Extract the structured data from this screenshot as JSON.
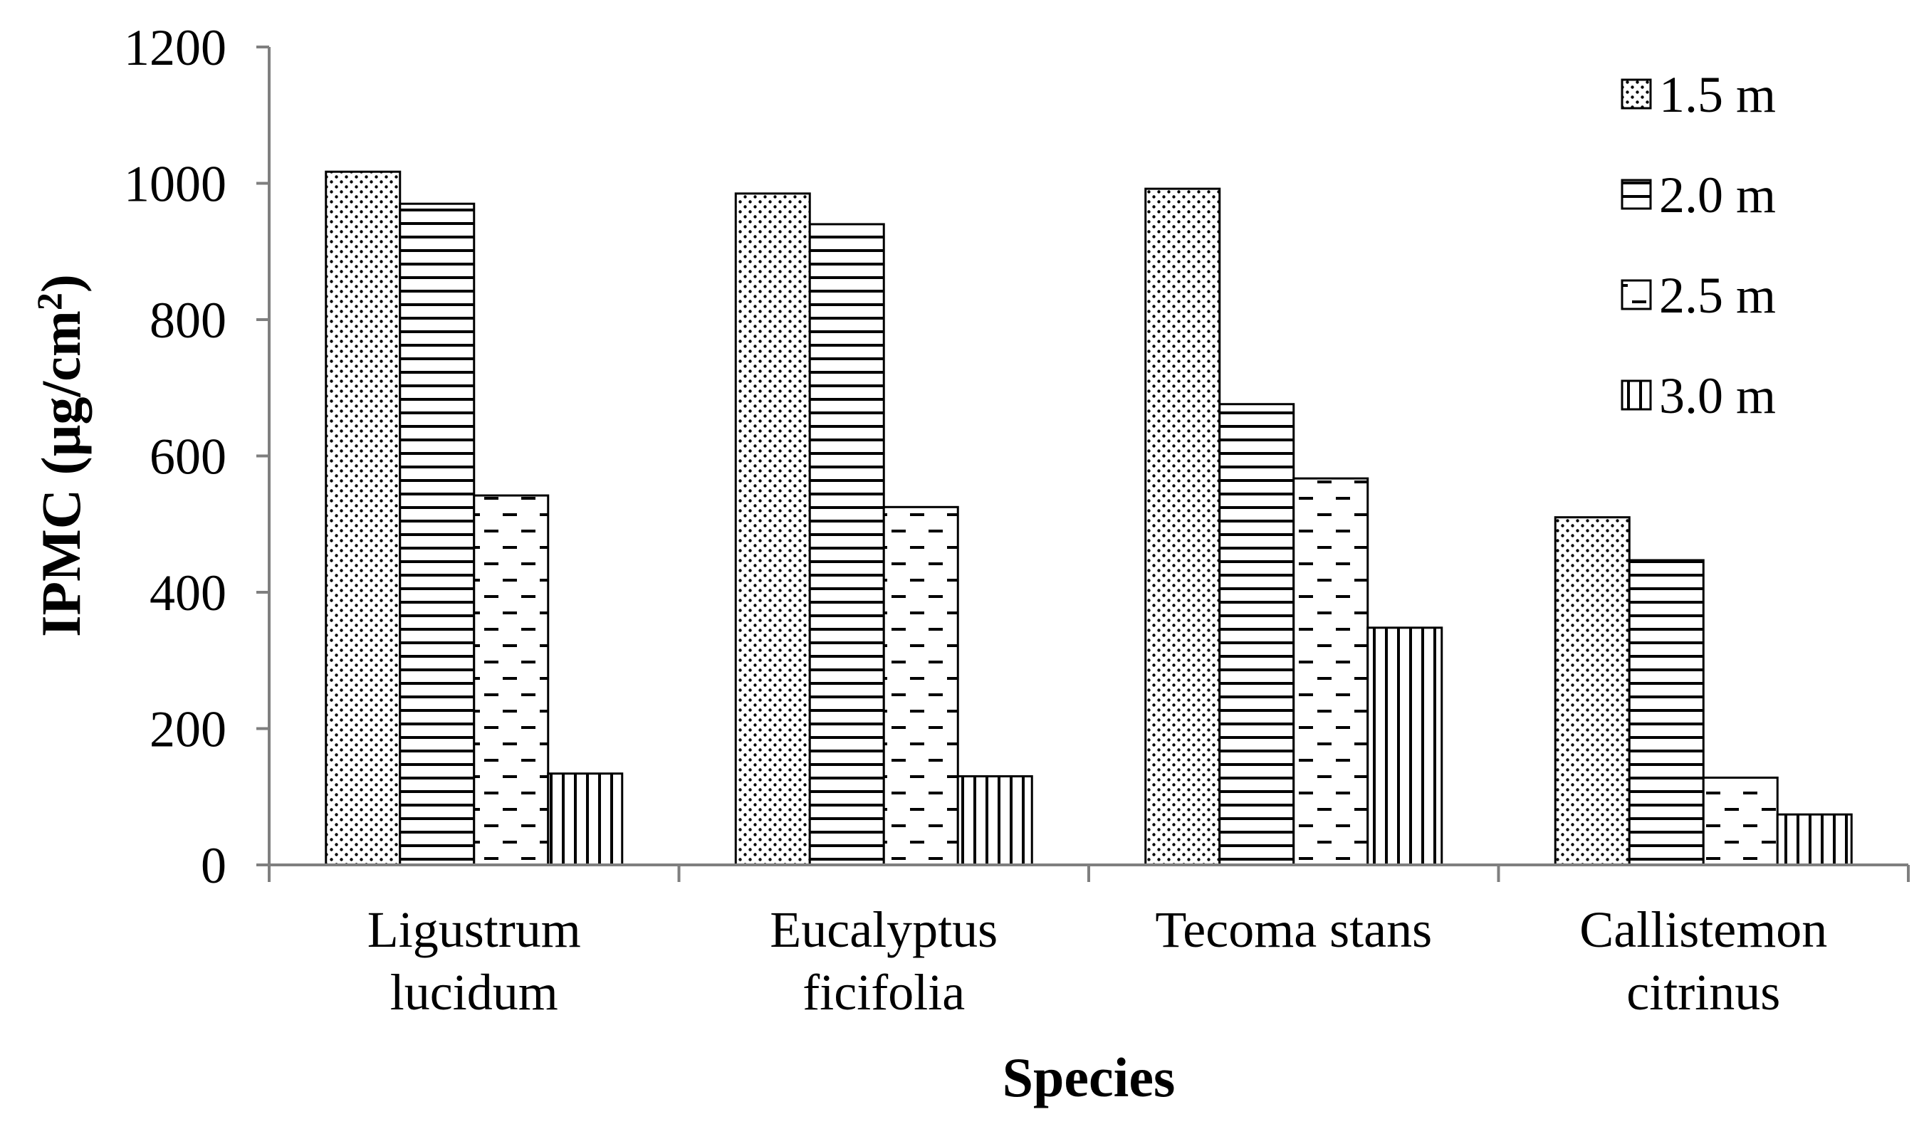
{
  "chart_data": {
    "type": "bar",
    "title": "",
    "xlabel": "Species",
    "ylabel": "IPMC (µg/cm",
    "ylabel_superscript": "2",
    "ylabel_close": ")",
    "ylim": [
      0,
      1200
    ],
    "yticks": [
      "0",
      "200",
      "400",
      "600",
      "800",
      "1000",
      "1200"
    ],
    "ytick_values": [
      0,
      200,
      400,
      600,
      800,
      1000,
      1200
    ],
    "grid": false,
    "legend_position": "top-right",
    "categories": [
      [
        "Ligustrum",
        "lucidum"
      ],
      [
        "Eucalyptus",
        "ficifolia"
      ],
      [
        "Tecoma stans"
      ],
      [
        "Callistemon",
        "citrinus"
      ]
    ],
    "series": [
      {
        "name": "1.5 m",
        "pattern": "dots",
        "values": [
          1017,
          985,
          992,
          510
        ]
      },
      {
        "name": "2.0 m",
        "pattern": "horizontal-lines",
        "values": [
          970,
          940,
          676,
          447
        ]
      },
      {
        "name": "2.5 m",
        "pattern": "dashes",
        "values": [
          542,
          525,
          567,
          128
        ]
      },
      {
        "name": "3.0 m",
        "pattern": "vertical-lines",
        "values": [
          134,
          130,
          348,
          74
        ]
      }
    ]
  }
}
